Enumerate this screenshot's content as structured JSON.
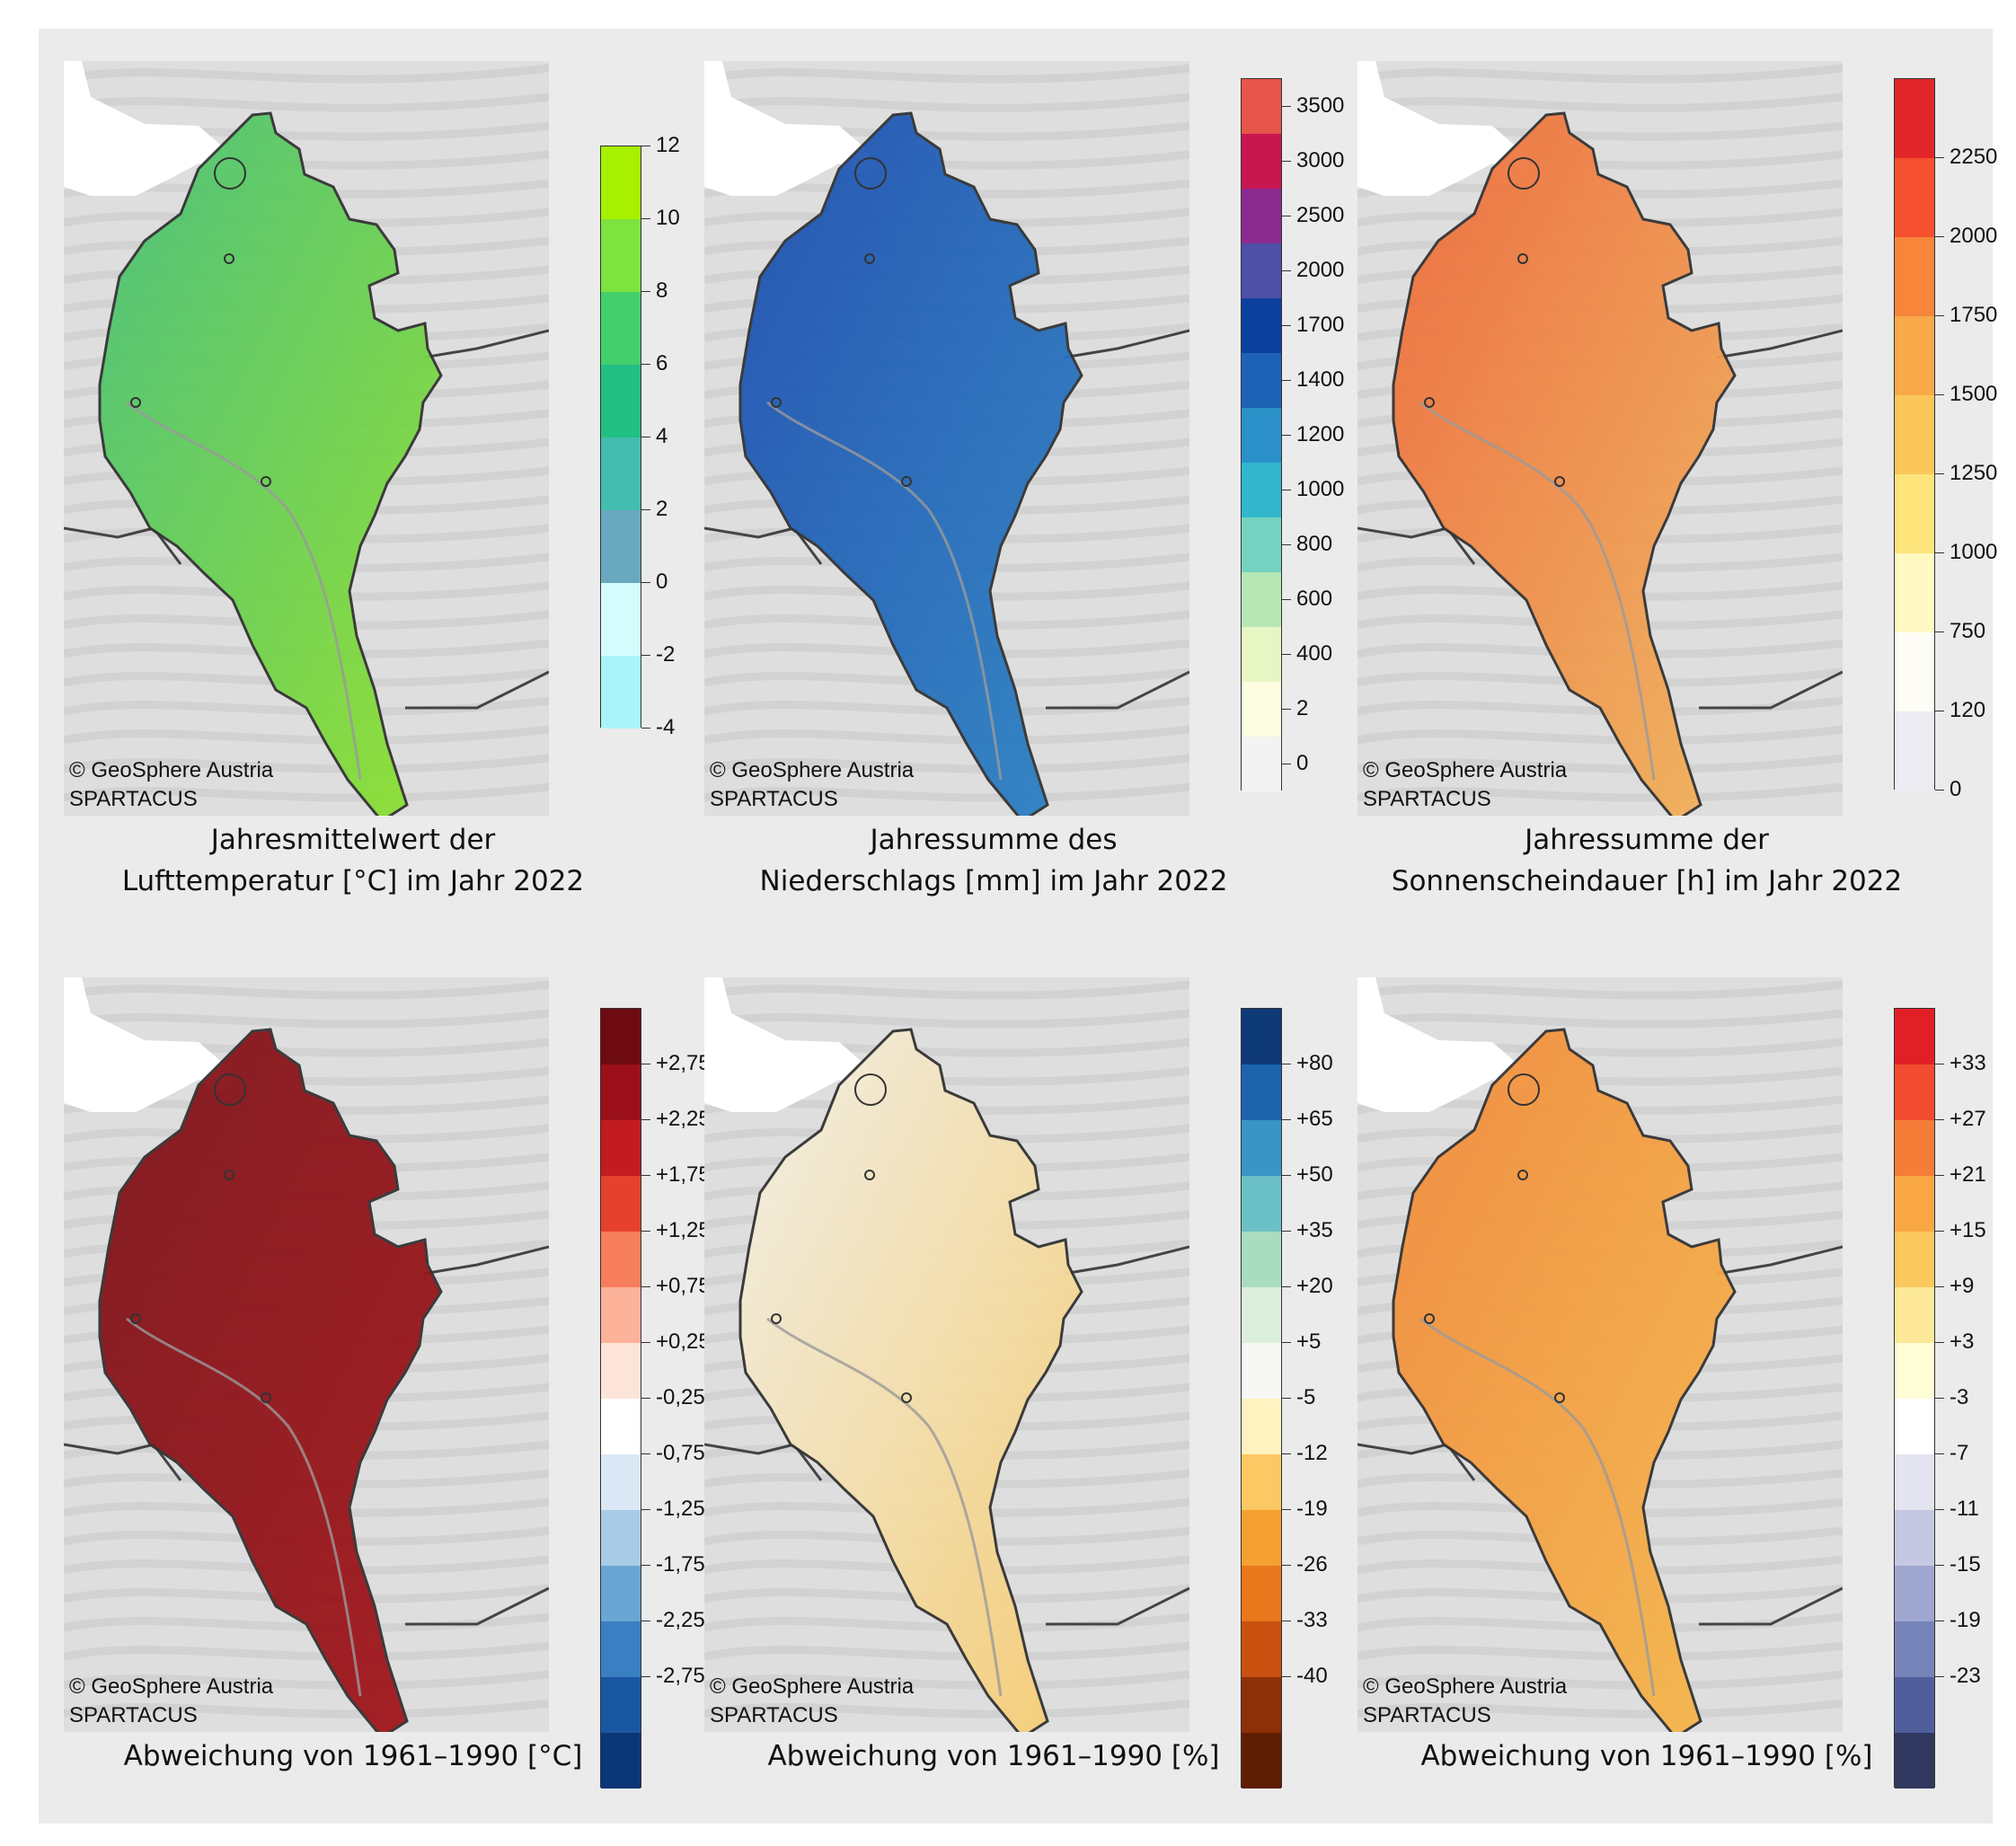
{
  "panels": [
    {
      "copyright": "© GeoSphere Austria",
      "source": "SPARTACUS",
      "caption_line1": "Jahresmittelwert der",
      "caption_line2": "Lufttemperatur [°C] im Jahr 2022",
      "fill": "#8fe02e",
      "fill2": "#47c079",
      "legend_labels": [
        "12",
        "10",
        "8",
        "6",
        "4",
        "2",
        "0",
        "-2",
        "-4"
      ],
      "legend_colors": [
        "#a6f000",
        "#7ee23f",
        "#44cf6d",
        "#22bf84",
        "#44bcb0",
        "#6aa8c0",
        "#d4fcfd",
        "#a8f4fa"
      ],
      "legend_mode": "boundaries"
    },
    {
      "copyright": "© GeoSphere Austria",
      "source": "SPARTACUS",
      "caption_line1": "Jahressumme des",
      "caption_line2": "Niederschlags [mm] im Jahr 2022",
      "fill": "#2c83c4",
      "fill2": "#1f4fb0",
      "legend_labels": [
        "3500",
        "3000",
        "2500",
        "2000",
        "1700",
        "1400",
        "1200",
        "1000",
        "800",
        "600",
        "400",
        "2",
        "0"
      ],
      "legend_colors": [
        "#e6564a",
        "#c6184f",
        "#8c2b8f",
        "#4e4fa6",
        "#0d3f9f",
        "#1d62b4",
        "#2b90c8",
        "#31b6cc",
        "#74d2c0",
        "#b6e7b4",
        "#e8f6c4",
        "#fdfde2",
        "#f3f3f3"
      ],
      "legend_mode": "centers"
    },
    {
      "copyright": "© GeoSphere Austria",
      "source": "SPARTACUS",
      "caption_line1": "Jahressumme der",
      "caption_line2": "Sonnenscheindauer [h] im Jahr 2022",
      "fill": "#f1b45c",
      "fill2": "#ee6a3c",
      "legend_labels": [
        "2250",
        "2000",
        "1750",
        "1500",
        "1250",
        "1000",
        "750",
        "120",
        "0"
      ],
      "legend_colors": [
        "#e1262a",
        "#f5502f",
        "#f7853a",
        "#f8a949",
        "#fbc75a",
        "#fde47b",
        "#fff9c3",
        "#fdfdf6",
        "#ececf2"
      ],
      "legend_mode": "boundaries_top"
    },
    {
      "copyright": "© GeoSphere Austria",
      "source": "SPARTACUS",
      "caption_line1": "Abweichung von 1961–1990 [°C]",
      "caption_line2": "",
      "fill": "#a3161c",
      "fill2": "#7e141a",
      "legend_labels": [
        "+2,75",
        "+2,25",
        "+1,75",
        "+1,25",
        "+0,75",
        "+0,25",
        "-0,25",
        "-0,75",
        "-1,25",
        "-1,75",
        "-2,25",
        "-2,75"
      ],
      "legend_colors": [
        "#6e0b12",
        "#9a0f1a",
        "#c21c20",
        "#e6412d",
        "#f77e5c",
        "#fcb39a",
        "#fde4d8",
        "#ffffff",
        "#dbe8f5",
        "#aacbe5",
        "#6aa6d4",
        "#3a7fc1",
        "#1a57a2",
        "#0b3677"
      ],
      "legend_mode": "boundaries_mid"
    },
    {
      "copyright": "© GeoSphere Austria",
      "source": "SPARTACUS",
      "caption_line1": "Abweichung von 1961–1990 [%]",
      "caption_line2": "",
      "fill": "#f6cc72",
      "fill2": "#f3f1e8",
      "legend_labels": [
        "+80",
        "+65",
        "+50",
        "+35",
        "+20",
        "+5",
        "-5",
        "-12",
        "-19",
        "-26",
        "-33",
        "-40"
      ],
      "legend_colors": [
        "#0f3a78",
        "#1c65ad",
        "#3a95c7",
        "#6bc0c6",
        "#a9dcc0",
        "#dcefdc",
        "#f7f7f5",
        "#fef2c0",
        "#fbc864",
        "#f5a132",
        "#e9771c",
        "#c95110",
        "#8c3008",
        "#5e1e04"
      ],
      "legend_mode": "boundaries_mid"
    },
    {
      "copyright": "© GeoSphere Austria",
      "source": "SPARTACUS",
      "caption_line1": "Abweichung von 1961–1990 [%]",
      "caption_line2": "",
      "fill": "#f6b84c",
      "fill2": "#f28a3c",
      "legend_labels": [
        "+33",
        "+27",
        "+21",
        "+15",
        "+9",
        "+3",
        "-3",
        "-7",
        "-11",
        "-15",
        "-19",
        "-23"
      ],
      "legend_colors": [
        "#e11f26",
        "#f14c2f",
        "#f67d37",
        "#f9a745",
        "#fbc85d",
        "#fde898",
        "#fefdd6",
        "#ffffff",
        "#e4e4f0",
        "#c4c8e2",
        "#9fa7d0",
        "#7683b8",
        "#505f9c",
        "#30385f"
      ],
      "legend_mode": "boundaries_mid"
    }
  ]
}
